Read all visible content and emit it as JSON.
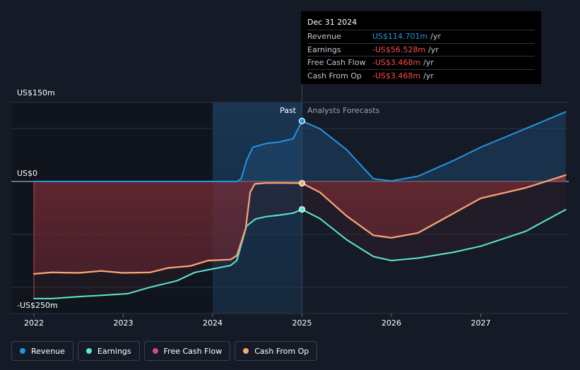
{
  "tooltip": {
    "date": "Dec 31 2024",
    "rows": [
      {
        "label": "Revenue",
        "value": "US$114.701m",
        "unit": "/yr"
      },
      {
        "label": "Earnings",
        "value": "-US$56.528m",
        "unit": "/yr"
      },
      {
        "label": "Free Cash Flow",
        "value": "-US$3.468m",
        "unit": "/yr"
      },
      {
        "label": "Cash From Op",
        "value": "-US$3.468m",
        "unit": "/yr"
      }
    ]
  },
  "legend": [
    {
      "label": "Revenue",
      "color": "#2394df"
    },
    {
      "label": "Earnings",
      "color": "#5de9d0"
    },
    {
      "label": "Free Cash Flow",
      "color": "#cc4b8a"
    },
    {
      "label": "Cash From Op",
      "color": "#f0ad6b"
    }
  ],
  "chart_data": {
    "type": "line",
    "y_axis_labels": [
      "US$150m",
      "US$0",
      "-US$250m"
    ],
    "ylim": [
      -250,
      150
    ],
    "xlim": [
      2021.8,
      2027.95
    ],
    "x_ticks": [
      2022,
      2023,
      2024,
      2025,
      2026,
      2027
    ],
    "x_tick_labels": [
      "2022",
      "2023",
      "2024",
      "2025",
      "2026",
      "2027"
    ],
    "past_label": "Past",
    "forecast_label": "Analysts Forecasts",
    "divider_x": 2025.0,
    "highlight_start_x": 2024.0,
    "colors": {
      "revenue": "#2394df",
      "earnings": "#5de9d0",
      "fcf": "#cc4b8a",
      "cfo": "#f0ad6b"
    },
    "series": [
      {
        "key": "revenue",
        "name": "Revenue",
        "points": [
          [
            2022.0,
            0
          ],
          [
            2024.27,
            0
          ],
          [
            2024.32,
            5
          ],
          [
            2024.38,
            40
          ],
          [
            2024.45,
            65
          ],
          [
            2024.6,
            72
          ],
          [
            2024.75,
            75
          ],
          [
            2024.9,
            81
          ],
          [
            2025.0,
            114.7
          ],
          [
            2025.2,
            100
          ],
          [
            2025.5,
            60
          ],
          [
            2025.8,
            5
          ],
          [
            2026.0,
            1
          ],
          [
            2026.3,
            10
          ],
          [
            2026.7,
            40
          ],
          [
            2027.0,
            65
          ],
          [
            2027.5,
            100
          ],
          [
            2027.95,
            132
          ]
        ]
      },
      {
        "key": "earnings",
        "name": "Earnings",
        "points": [
          [
            2022.0,
            -237
          ],
          [
            2022.2,
            -237
          ],
          [
            2022.5,
            -233
          ],
          [
            2022.7,
            -231
          ],
          [
            2023.05,
            -227
          ],
          [
            2023.3,
            -214
          ],
          [
            2023.6,
            -201
          ],
          [
            2023.8,
            -184
          ],
          [
            2024.0,
            -177
          ],
          [
            2024.2,
            -170
          ],
          [
            2024.27,
            -160
          ],
          [
            2024.38,
            -90
          ],
          [
            2024.48,
            -76
          ],
          [
            2024.6,
            -71
          ],
          [
            2024.75,
            -68
          ],
          [
            2024.9,
            -64
          ],
          [
            2025.0,
            -56.5
          ],
          [
            2025.2,
            -75
          ],
          [
            2025.5,
            -118
          ],
          [
            2025.8,
            -152
          ],
          [
            2026.0,
            -160
          ],
          [
            2026.3,
            -155
          ],
          [
            2026.7,
            -143
          ],
          [
            2027.0,
            -131
          ],
          [
            2027.5,
            -101
          ],
          [
            2027.95,
            -57
          ]
        ]
      },
      {
        "key": "fcf",
        "name": "Free Cash Flow",
        "points": [
          [
            2022.0,
            -187
          ],
          [
            2022.2,
            -184
          ],
          [
            2022.5,
            -185
          ],
          [
            2022.75,
            -181
          ],
          [
            2023.0,
            -185
          ],
          [
            2023.3,
            -184
          ],
          [
            2023.5,
            -175
          ],
          [
            2023.75,
            -171
          ],
          [
            2023.95,
            -160
          ],
          [
            2024.2,
            -158
          ],
          [
            2024.27,
            -150
          ],
          [
            2024.37,
            -95
          ],
          [
            2024.42,
            -22
          ],
          [
            2024.47,
            -5
          ],
          [
            2024.6,
            -3
          ],
          [
            2024.8,
            -3
          ],
          [
            2025.0,
            -3.5
          ],
          [
            2025.2,
            -22
          ],
          [
            2025.5,
            -70
          ],
          [
            2025.8,
            -109
          ],
          [
            2026.0,
            -114
          ],
          [
            2026.3,
            -104
          ],
          [
            2026.7,
            -64
          ],
          [
            2027.0,
            -34
          ],
          [
            2027.5,
            -13
          ],
          [
            2027.95,
            12
          ]
        ]
      },
      {
        "key": "cfo",
        "name": "Cash From Op",
        "points": [
          [
            2022.0,
            -187
          ],
          [
            2022.2,
            -184
          ],
          [
            2022.5,
            -185
          ],
          [
            2022.75,
            -181
          ],
          [
            2023.0,
            -185
          ],
          [
            2023.3,
            -184
          ],
          [
            2023.5,
            -175
          ],
          [
            2023.75,
            -171
          ],
          [
            2023.95,
            -160
          ],
          [
            2024.2,
            -158
          ],
          [
            2024.27,
            -150
          ],
          [
            2024.37,
            -95
          ],
          [
            2024.42,
            -22
          ],
          [
            2024.47,
            -5
          ],
          [
            2024.6,
            -3
          ],
          [
            2024.8,
            -3
          ],
          [
            2025.0,
            -3.5
          ],
          [
            2025.2,
            -22
          ],
          [
            2025.5,
            -70
          ],
          [
            2025.8,
            -109
          ],
          [
            2026.0,
            -114
          ],
          [
            2026.3,
            -104
          ],
          [
            2026.7,
            -64
          ],
          [
            2027.0,
            -34
          ],
          [
            2027.5,
            -13
          ],
          [
            2027.95,
            12
          ]
        ]
      }
    ],
    "markers_at": 2025.0
  }
}
